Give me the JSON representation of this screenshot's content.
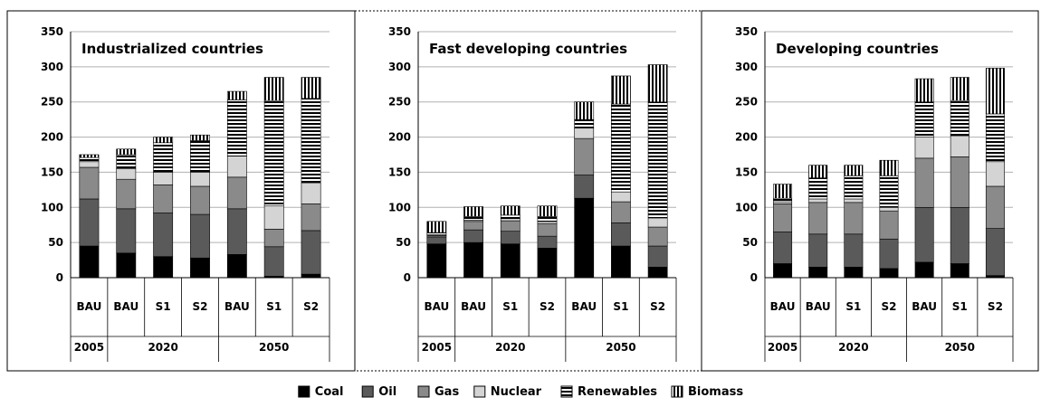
{
  "chart_data": {
    "type": "bar",
    "stacked": true,
    "ylim": [
      0,
      350
    ],
    "yticks": [
      0,
      50,
      100,
      150,
      200,
      250,
      300,
      350
    ],
    "grid": true,
    "legend_position": "bottom",
    "categories": [
      "BAU",
      "BAU",
      "S1",
      "S2",
      "BAU",
      "S1",
      "S2"
    ],
    "years": [
      {
        "label": "2005",
        "span": 1
      },
      {
        "label": "2020",
        "span": 3
      },
      {
        "label": "2050",
        "span": 3
      }
    ],
    "legend": [
      {
        "name": "Coal",
        "color": "#000000",
        "pattern": "solid"
      },
      {
        "name": "Oil",
        "color": "#5a5a5a",
        "pattern": "solid"
      },
      {
        "name": "Gas",
        "color": "#8a8a8a",
        "pattern": "solid"
      },
      {
        "name": "Nuclear",
        "color": "#d4d4d4",
        "pattern": "solid"
      },
      {
        "name": "Renewables",
        "color": "#000000",
        "pattern": "hstripe"
      },
      {
        "name": "Biomass",
        "color": "#000000",
        "pattern": "vstripe"
      }
    ],
    "panels": [
      {
        "title": "Industrialized countries",
        "series": [
          {
            "name": "Coal",
            "values": [
              45,
              35,
              30,
              28,
              33,
              2,
              5
            ]
          },
          {
            "name": "Oil",
            "values": [
              67,
              63,
              62,
              62,
              65,
              42,
              62
            ]
          },
          {
            "name": "Gas",
            "values": [
              45,
              42,
              40,
              40,
              45,
              25,
              38
            ]
          },
          {
            "name": "Nuclear",
            "values": [
              8,
              15,
              18,
              20,
              30,
              33,
              30
            ]
          },
          {
            "name": "Renewables",
            "values": [
              6,
              20,
              42,
              45,
              80,
              150,
              120
            ]
          },
          {
            "name": "Biomass",
            "values": [
              4,
              8,
              8,
              8,
              12,
              33,
              30
            ]
          }
        ]
      },
      {
        "title": "Fast developing countries",
        "series": [
          {
            "name": "Coal",
            "values": [
              48,
              50,
              48,
              42,
              113,
              45,
              15
            ]
          },
          {
            "name": "Oil",
            "values": [
              10,
              18,
              18,
              17,
              33,
              33,
              30
            ]
          },
          {
            "name": "Gas",
            "values": [
              2,
              12,
              15,
              18,
              52,
              30,
              27
            ]
          },
          {
            "name": "Nuclear",
            "values": [
              1,
              2,
              3,
              3,
              15,
              14,
              13
            ]
          },
          {
            "name": "Renewables",
            "values": [
              3,
              5,
              5,
              7,
              12,
              125,
              165
            ]
          },
          {
            "name": "Biomass",
            "values": [
              16,
              14,
              13,
              15,
              25,
              40,
              53
            ]
          }
        ]
      },
      {
        "title": "Developing countries",
        "series": [
          {
            "name": "Coal",
            "values": [
              20,
              15,
              15,
              13,
              22,
              20,
              3
            ]
          },
          {
            "name": "Oil",
            "values": [
              45,
              47,
              47,
              42,
              78,
              80,
              67
            ]
          },
          {
            "name": "Gas",
            "values": [
              40,
              45,
              45,
              40,
              70,
              72,
              60
            ]
          },
          {
            "name": "Nuclear",
            "values": [
              3,
              5,
              5,
              5,
              30,
              30,
              35
            ]
          },
          {
            "name": "Renewables",
            "values": [
              5,
              30,
              33,
              45,
              50,
              50,
              68
            ]
          },
          {
            "name": "Biomass",
            "values": [
              20,
              18,
              15,
              22,
              33,
              33,
              65
            ]
          }
        ]
      }
    ]
  }
}
